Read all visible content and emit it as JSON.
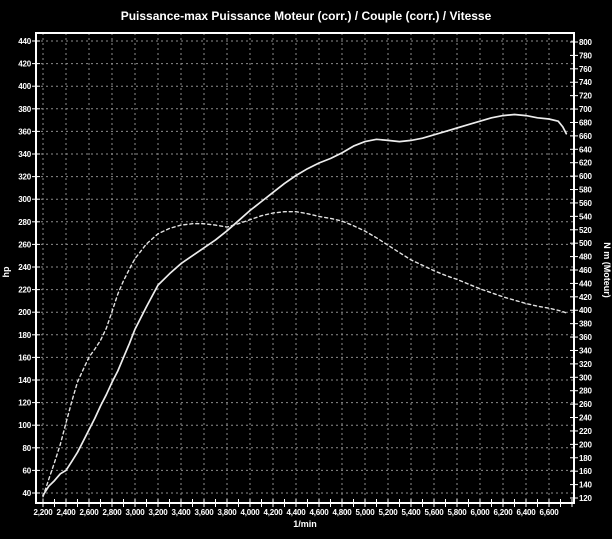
{
  "colors": {
    "background": "#000000",
    "text": "#ffffff",
    "grid": "#8c8c8c",
    "frame": "#ffffff",
    "power_curve": "#ededed",
    "torque_curve": "#e2e2e2"
  },
  "chart_data": {
    "type": "line",
    "title": "Puissance-max Puissance Moteur (corr.) / Couple (corr.) / Vitesse",
    "xlabel": "1/min",
    "legend": "none",
    "grid": "on",
    "axes": {
      "x": {
        "min": 2200,
        "max": 6600,
        "step": 200,
        "minor_step": 100,
        "tick_format": "thousands-comma"
      },
      "left": {
        "label": "hp",
        "min": 40,
        "max": 440,
        "step": 20
      },
      "right": {
        "label": "N m (Moteur)",
        "min": 120,
        "max": 800,
        "step": 20
      }
    },
    "series": [
      {
        "name": "Puissance Moteur (corr.)",
        "axis": "left",
        "unit": "hp",
        "style": "solid",
        "color": "#ededed",
        "peak": {
          "rpm": 6300,
          "value": 375
        },
        "points": [
          [
            2200,
            38
          ],
          [
            2250,
            46
          ],
          [
            2300,
            51
          ],
          [
            2350,
            57
          ],
          [
            2400,
            60
          ],
          [
            2450,
            68
          ],
          [
            2500,
            76
          ],
          [
            2550,
            86
          ],
          [
            2600,
            96
          ],
          [
            2650,
            106
          ],
          [
            2700,
            117
          ],
          [
            2750,
            127
          ],
          [
            2800,
            138
          ],
          [
            2850,
            148
          ],
          [
            2900,
            160
          ],
          [
            2950,
            172
          ],
          [
            3000,
            185
          ],
          [
            3100,
            205
          ],
          [
            3200,
            224
          ],
          [
            3300,
            234
          ],
          [
            3400,
            243
          ],
          [
            3500,
            250
          ],
          [
            3600,
            257
          ],
          [
            3700,
            264
          ],
          [
            3800,
            272
          ],
          [
            3900,
            281
          ],
          [
            4000,
            290
          ],
          [
            4100,
            298
          ],
          [
            4200,
            306
          ],
          [
            4300,
            314
          ],
          [
            4400,
            321
          ],
          [
            4500,
            327
          ],
          [
            4600,
            332
          ],
          [
            4700,
            336
          ],
          [
            4800,
            341
          ],
          [
            4900,
            347
          ],
          [
            5000,
            351
          ],
          [
            5100,
            353
          ],
          [
            5200,
            352
          ],
          [
            5300,
            351
          ],
          [
            5400,
            352
          ],
          [
            5500,
            354
          ],
          [
            5600,
            357
          ],
          [
            5700,
            360
          ],
          [
            5800,
            363
          ],
          [
            5900,
            366
          ],
          [
            6000,
            369
          ],
          [
            6100,
            372
          ],
          [
            6200,
            374
          ],
          [
            6300,
            375
          ],
          [
            6400,
            374
          ],
          [
            6500,
            372
          ],
          [
            6600,
            371
          ],
          [
            6680,
            369
          ],
          [
            6720,
            364
          ],
          [
            6750,
            358
          ]
        ]
      },
      {
        "name": "Couple (corr.)",
        "axis": "right",
        "unit": "N m",
        "style": "dashed",
        "color": "#e2e2e2",
        "peak": {
          "rpm": 4350,
          "value": 547
        },
        "points": [
          [
            2200,
            122
          ],
          [
            2250,
            148
          ],
          [
            2300,
            173
          ],
          [
            2350,
            200
          ],
          [
            2400,
            232
          ],
          [
            2450,
            264
          ],
          [
            2500,
            293
          ],
          [
            2550,
            312
          ],
          [
            2600,
            330
          ],
          [
            2650,
            342
          ],
          [
            2700,
            355
          ],
          [
            2750,
            373
          ],
          [
            2800,
            398
          ],
          [
            2850,
            424
          ],
          [
            2900,
            444
          ],
          [
            2950,
            461
          ],
          [
            3000,
            477
          ],
          [
            3100,
            499
          ],
          [
            3200,
            514
          ],
          [
            3300,
            522
          ],
          [
            3400,
            527
          ],
          [
            3500,
            529
          ],
          [
            3600,
            529
          ],
          [
            3700,
            527
          ],
          [
            3800,
            524
          ],
          [
            3900,
            529
          ],
          [
            4000,
            535
          ],
          [
            4100,
            541
          ],
          [
            4200,
            545
          ],
          [
            4300,
            547
          ],
          [
            4400,
            547
          ],
          [
            4500,
            544
          ],
          [
            4600,
            540
          ],
          [
            4700,
            537
          ],
          [
            4800,
            533
          ],
          [
            4900,
            526
          ],
          [
            5000,
            518
          ],
          [
            5100,
            508
          ],
          [
            5200,
            497
          ],
          [
            5300,
            486
          ],
          [
            5400,
            475
          ],
          [
            5500,
            467
          ],
          [
            5600,
            459
          ],
          [
            5700,
            452
          ],
          [
            5800,
            446
          ],
          [
            5900,
            439
          ],
          [
            6000,
            432
          ],
          [
            6100,
            426
          ],
          [
            6200,
            420
          ],
          [
            6300,
            415
          ],
          [
            6400,
            410
          ],
          [
            6500,
            406
          ],
          [
            6600,
            403
          ],
          [
            6700,
            399
          ],
          [
            6750,
            396
          ]
        ]
      }
    ]
  }
}
